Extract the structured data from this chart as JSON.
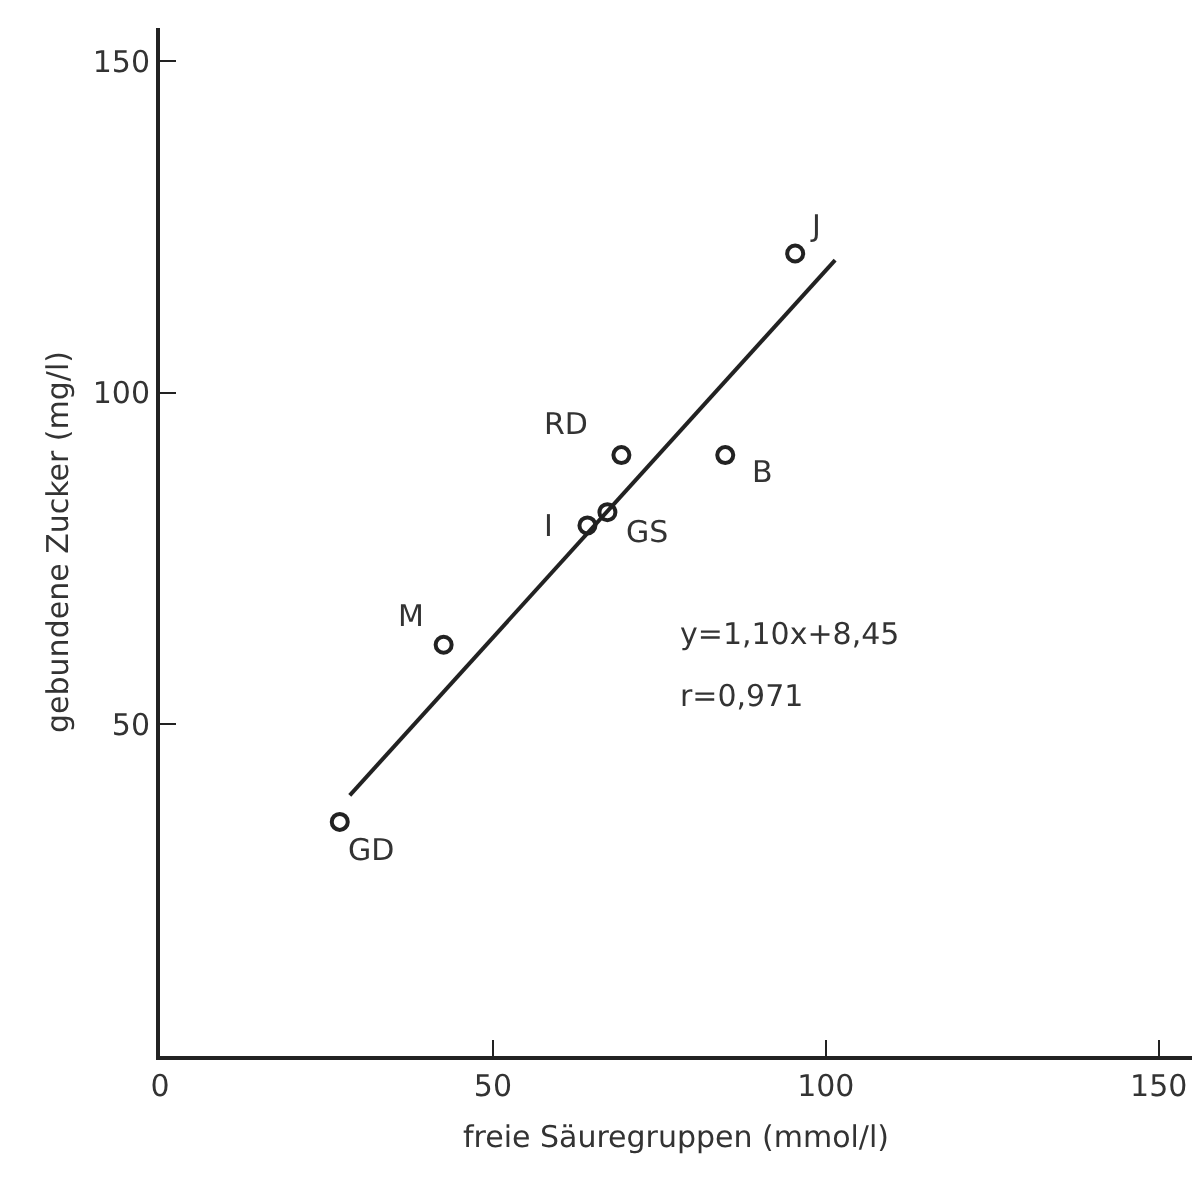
{
  "chart_data": {
    "type": "scatter",
    "xlabel": "freie Säuregruppen (mmol/l)",
    "ylabel": "gebundene Zucker (mg/l)",
    "xlim": [
      0,
      155
    ],
    "xticks": [
      0,
      50,
      100,
      150
    ],
    "ylim": [
      0,
      155
    ],
    "yticks": [
      50,
      100,
      150
    ],
    "grid": false,
    "marker": "circle",
    "series": [
      {
        "color": "#222222",
        "x": [
          95.4,
          69.3,
          84.9,
          64.2,
          67.2,
          42.6,
          27
        ],
        "values": [
          121,
          90.6,
          90.6,
          80,
          82,
          62,
          35.3
        ]
      },
      {
        "type": "line",
        "color": "#222222",
        "marker": "none",
        "line_style": "solid",
        "x": [
          28.5,
          101.4
        ],
        "values": [
          39.3,
          120
        ]
      }
    ],
    "annotations": [
      {
        "text": "J",
        "x": 95.4,
        "y": 121
      },
      {
        "text": "RD",
        "x": 69.3,
        "y": 90.6
      },
      {
        "text": "B",
        "x": 84.9,
        "y": 90.6
      },
      {
        "text": "I",
        "x": 64.2,
        "y": 80
      },
      {
        "text": "GS",
        "x": 67.2,
        "y": 82
      },
      {
        "text": "M",
        "x": 42.6,
        "y": 62
      },
      {
        "text": "GD",
        "x": 27,
        "y": 35.3
      },
      "y=1,10x+8,45",
      "r=0,971"
    ]
  }
}
